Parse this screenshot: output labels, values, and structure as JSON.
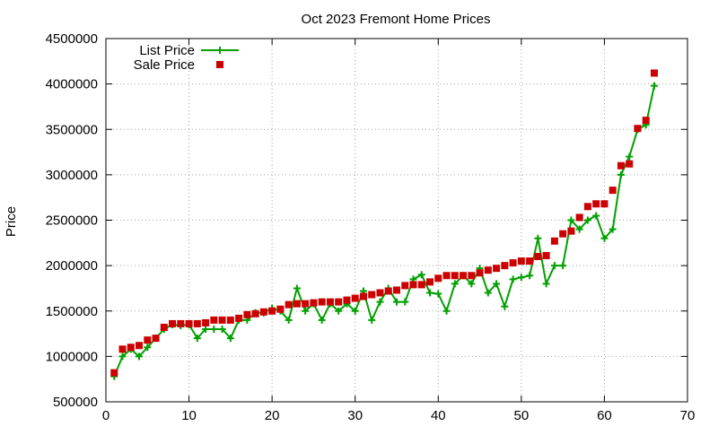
{
  "chart_data": {
    "type": "line",
    "title": "Oct 2023 Fremont Home Prices",
    "xlabel": "",
    "ylabel": "Price",
    "xlim": [
      0,
      70
    ],
    "ylim": [
      500000,
      4500000
    ],
    "x_ticks": [
      0,
      10,
      20,
      30,
      40,
      50,
      60,
      70
    ],
    "y_ticks": [
      500000,
      1000000,
      1500000,
      2000000,
      2500000,
      3000000,
      3500000,
      4000000,
      4500000
    ],
    "grid": true,
    "legend_position": "top-left",
    "series": [
      {
        "name": "List Price",
        "style": "line-with-plus-markers",
        "color": "#00a000",
        "x": [
          1,
          2,
          3,
          4,
          5,
          6,
          7,
          8,
          9,
          10,
          11,
          12,
          13,
          14,
          15,
          16,
          17,
          18,
          19,
          20,
          21,
          22,
          23,
          24,
          25,
          26,
          27,
          28,
          29,
          30,
          31,
          32,
          33,
          34,
          35,
          36,
          37,
          38,
          39,
          40,
          41,
          42,
          43,
          44,
          45,
          46,
          47,
          48,
          49,
          50,
          51,
          52,
          53,
          54,
          55,
          56,
          57,
          58,
          59,
          60,
          61,
          62,
          63,
          64,
          65,
          66
        ],
        "values": [
          780000,
          1000000,
          1080000,
          1000000,
          1100000,
          1200000,
          1300000,
          1350000,
          1340000,
          1350000,
          1200000,
          1300000,
          1300000,
          1300000,
          1200000,
          1400000,
          1400000,
          1480000,
          1480000,
          1530000,
          1500000,
          1400000,
          1750000,
          1500000,
          1580000,
          1400000,
          1580000,
          1500000,
          1580000,
          1500000,
          1720000,
          1400000,
          1600000,
          1750000,
          1600000,
          1600000,
          1850000,
          1900000,
          1700000,
          1690000,
          1500000,
          1800000,
          1890000,
          1800000,
          1970000,
          1700000,
          1800000,
          1550000,
          1850000,
          1870000,
          1890000,
          2300000,
          1800000,
          2000000,
          2000000,
          2500000,
          2400000,
          2500000,
          2550000,
          2300000,
          2400000,
          3000000,
          3200000,
          3500000,
          3550000,
          3980000
        ]
      },
      {
        "name": "Sale Price",
        "style": "square-markers",
        "color": "#cc0000",
        "x": [
          1,
          2,
          3,
          4,
          5,
          6,
          7,
          8,
          9,
          10,
          11,
          12,
          13,
          14,
          15,
          16,
          17,
          18,
          19,
          20,
          21,
          22,
          23,
          24,
          25,
          26,
          27,
          28,
          29,
          30,
          31,
          32,
          33,
          34,
          35,
          36,
          37,
          38,
          39,
          40,
          41,
          42,
          43,
          44,
          45,
          46,
          47,
          48,
          49,
          50,
          51,
          52,
          53,
          54,
          55,
          56,
          57,
          58,
          59,
          60,
          61,
          62,
          63,
          64,
          65,
          66
        ],
        "values": [
          820000,
          1080000,
          1100000,
          1120000,
          1180000,
          1200000,
          1320000,
          1360000,
          1360000,
          1360000,
          1360000,
          1370000,
          1400000,
          1400000,
          1400000,
          1420000,
          1460000,
          1470000,
          1490000,
          1500000,
          1520000,
          1570000,
          1580000,
          1580000,
          1590000,
          1600000,
          1600000,
          1600000,
          1620000,
          1640000,
          1660000,
          1680000,
          1700000,
          1720000,
          1730000,
          1780000,
          1790000,
          1790000,
          1820000,
          1860000,
          1890000,
          1890000,
          1890000,
          1890000,
          1920000,
          1950000,
          1970000,
          2000000,
          2030000,
          2050000,
          2050000,
          2100000,
          2110000,
          2270000,
          2350000,
          2380000,
          2530000,
          2650000,
          2680000,
          2680000,
          2830000,
          3100000,
          3120000,
          3510000,
          3600000,
          4120000
        ]
      }
    ]
  }
}
